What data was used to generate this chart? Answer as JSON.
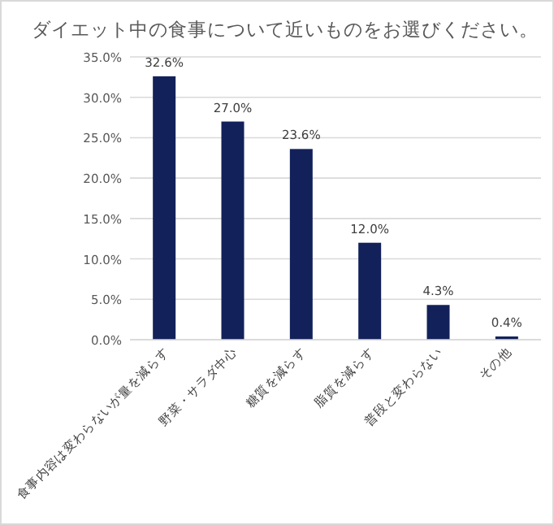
{
  "chart_data": {
    "type": "bar",
    "title": "ダイエット中の食事について近いものをお選びください。",
    "categories": [
      "食事内容は変わらないが量を減らす",
      "野菜・サラダ中心",
      "糖質を減らす",
      "脂質を減らす",
      "普段と変わらない",
      "その他"
    ],
    "values": [
      32.6,
      27.0,
      23.6,
      12.0,
      4.3,
      0.4
    ],
    "value_labels": [
      "32.6%",
      "27.0%",
      "23.6%",
      "12.0%",
      "4.3%",
      "0.4%"
    ],
    "color": "#13215a",
    "ylim": [
      0,
      35
    ],
    "yticks": [
      {
        "value": 0,
        "label": "0.0%"
      },
      {
        "value": 5,
        "label": "5.0%"
      },
      {
        "value": 10,
        "label": "10.0%"
      },
      {
        "value": 15,
        "label": "15.0%"
      },
      {
        "value": 20,
        "label": "20.0%"
      },
      {
        "value": 25,
        "label": "25.0%"
      },
      {
        "value": 30,
        "label": "30.0%"
      },
      {
        "value": 35,
        "label": "35.0%"
      }
    ],
    "grid": "y"
  }
}
